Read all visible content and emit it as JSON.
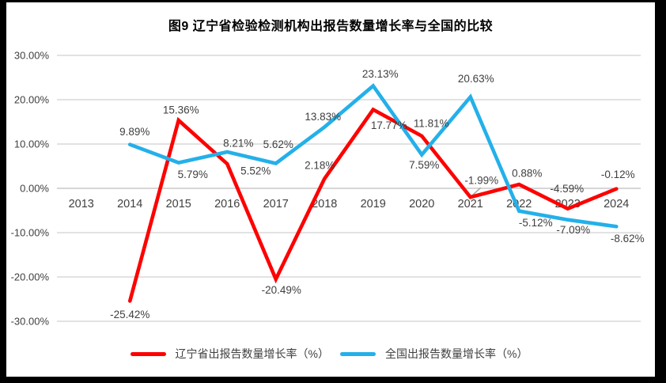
{
  "title": "图9  辽宁省检验检测机构出报告数量增长率与全国的比较",
  "chart_data": {
    "type": "line",
    "categories": [
      "2013",
      "2014",
      "2015",
      "2016",
      "2017",
      "2018",
      "2019",
      "2020",
      "2021",
      "2022",
      "2023",
      "2024"
    ],
    "series": [
      {
        "name": "辽宁省出报告数量增长率（%）",
        "color": "#FE0000",
        "values": [
          null,
          -25.42,
          15.36,
          5.52,
          -20.49,
          2.18,
          17.77,
          11.81,
          -1.99,
          0.88,
          -4.59,
          -0.12
        ],
        "labels": [
          null,
          {
            "dx": 0,
            "dy": 17
          },
          {
            "dx": 3,
            "dy": -13
          },
          {
            "dx": 36,
            "dy": 9
          },
          {
            "dx": 7,
            "dy": 14
          },
          {
            "dx": -6,
            "dy": -17
          },
          {
            "dx": 20,
            "dy": 20
          },
          {
            "dx": 12,
            "dy": -16
          },
          {
            "dx": 14,
            "dy": -21
          },
          {
            "dx": 10,
            "dy": -14
          },
          {
            "dx": -1,
            "dy": -25
          },
          {
            "dx": 2,
            "dy": -18
          }
        ]
      },
      {
        "name": "全国出报告数量增长率（%）",
        "color": "#24B0E9",
        "values": [
          null,
          9.89,
          5.79,
          8.21,
          5.62,
          13.83,
          23.13,
          7.59,
          20.63,
          -5.12,
          -7.09,
          -8.62
        ],
        "labels": [
          null,
          {
            "dx": 6,
            "dy": -16
          },
          {
            "dx": 18,
            "dy": 15
          },
          {
            "dx": 14,
            "dy": -11
          },
          {
            "dx": 3,
            "dy": -24
          },
          {
            "dx": -2,
            "dy": -13
          },
          {
            "dx": 9,
            "dy": -15
          },
          {
            "dx": 3,
            "dy": 13
          },
          {
            "dx": 7,
            "dy": -23
          },
          {
            "dx": 21,
            "dy": 15
          },
          {
            "dx": 7,
            "dy": 13
          },
          {
            "dx": 14,
            "dy": 15
          }
        ]
      }
    ],
    "ylim": [
      -30,
      30
    ],
    "ytick_step": 10,
    "ytick_labels": [
      "30.00%",
      "20.00%",
      "10.00%",
      "0.00%",
      "-10.00%",
      "-20.00%",
      "-30.00%"
    ],
    "label_format": "two-decimal-percent",
    "grid": true,
    "legend_position": "bottom",
    "leader_line": {
      "series": 0,
      "category": "2021"
    },
    "colors": {
      "gridline": "#D9D9D9",
      "zero_line": "#C8C8C8",
      "axis_text": "#404040",
      "data_label_text": "#3F3F3F",
      "leader": "#A6A6A6",
      "frame": "#000000",
      "background": "#FFFFFF"
    }
  }
}
